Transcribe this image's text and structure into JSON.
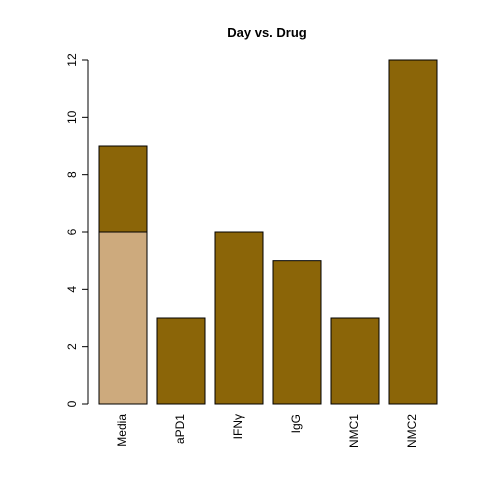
{
  "chart_data": {
    "type": "bar",
    "stacked": true,
    "title": "Day vs. Drug",
    "xlabel": "",
    "ylabel": "",
    "categories": [
      "Media",
      "aPD1",
      "IFNγ",
      "IgG",
      "NMC1",
      "NMC2"
    ],
    "series": [
      {
        "values": [
          6,
          0,
          0,
          0,
          0,
          0
        ],
        "color": "#CDAA7D"
      },
      {
        "values": [
          3,
          3,
          6,
          5,
          3,
          12
        ],
        "color": "#8B6508"
      }
    ],
    "ylim": [
      0,
      12
    ],
    "yticks": [
      0,
      2,
      4,
      6,
      8,
      10,
      12
    ],
    "grid": false,
    "legend": "none"
  }
}
